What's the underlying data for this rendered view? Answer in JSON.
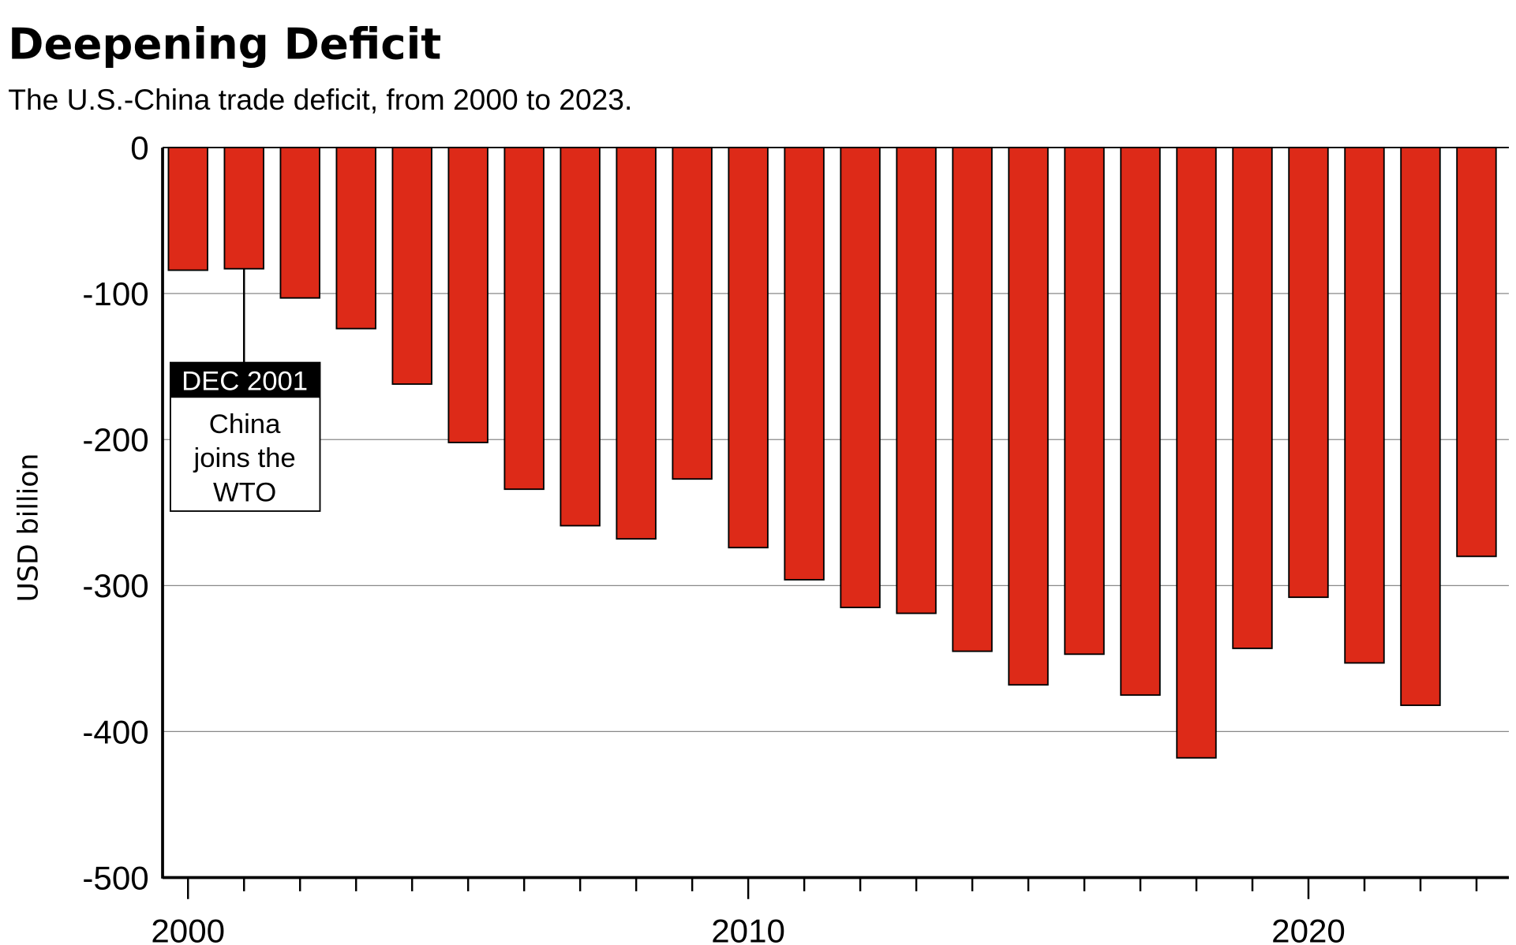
{
  "chart_data": {
    "type": "bar",
    "title": "Deepening Deficit",
    "subtitle": "The U.S.-China trade deficit, from 2000 to 2023.",
    "xlabel": "",
    "ylabel": "USD billion",
    "ylim": [
      -500,
      0
    ],
    "yticks": [
      0,
      -100,
      -200,
      -300,
      -400,
      -500
    ],
    "ytick_labels": [
      "0",
      "-100",
      "-200",
      "-300",
      "-400",
      "-500"
    ],
    "xtick_labels": [
      "2000",
      "2010",
      "2020"
    ],
    "xtick_values": [
      2000,
      2010,
      2020
    ],
    "grid": true,
    "bar_color": "#dd2a18",
    "categories": [
      2000,
      2001,
      2002,
      2003,
      2004,
      2005,
      2006,
      2007,
      2008,
      2009,
      2010,
      2011,
      2012,
      2013,
      2014,
      2015,
      2016,
      2017,
      2018,
      2019,
      2020,
      2021,
      2022,
      2023
    ],
    "values": [
      -84,
      -83,
      -103,
      -124,
      -162,
      -202,
      -234,
      -259,
      -268,
      -227,
      -274,
      -296,
      -315,
      -319,
      -345,
      -368,
      -347,
      -375,
      -418,
      -343,
      -308,
      -353,
      -382,
      -280
    ],
    "annotation": {
      "year": 2001,
      "heading": "DEC 2001",
      "lines": [
        "China",
        "joins the",
        "WTO"
      ]
    }
  }
}
